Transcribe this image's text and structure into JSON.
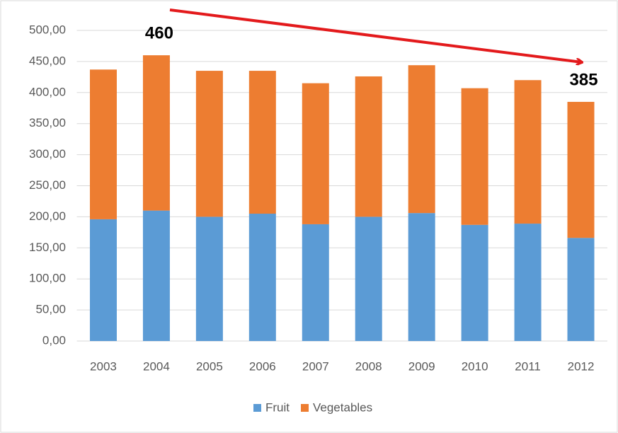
{
  "chart_data": {
    "type": "stacked_bar",
    "categories": [
      "2003",
      "2004",
      "2005",
      "2006",
      "2007",
      "2008",
      "2009",
      "2010",
      "2011",
      "2012"
    ],
    "series": [
      {
        "name": "Fruit",
        "color": "#5b9bd5",
        "values": [
          196,
          210,
          200,
          205,
          188,
          200,
          206,
          187,
          189,
          166
        ]
      },
      {
        "name": "Vegetables",
        "color": "#ed7d31",
        "values": [
          241,
          250,
          235,
          230,
          227,
          226,
          238,
          220,
          231,
          219
        ]
      }
    ],
    "ylim": [
      0,
      500
    ],
    "yticks": [
      {
        "value": 0,
        "label": "0,00"
      },
      {
        "value": 50,
        "label": "50,00"
      },
      {
        "value": 100,
        "label": "100,00"
      },
      {
        "value": 150,
        "label": "150,00"
      },
      {
        "value": 200,
        "label": "200,00"
      },
      {
        "value": 250,
        "label": "250,00"
      },
      {
        "value": 300,
        "label": "300,00"
      },
      {
        "value": 350,
        "label": "350,00"
      },
      {
        "value": 400,
        "label": "400,00"
      },
      {
        "value": 450,
        "label": "450,00"
      },
      {
        "value": 500,
        "label": "500,00"
      }
    ],
    "grid": true,
    "legend": "bottom",
    "annotations": [
      {
        "text": "460",
        "category": "2004"
      },
      {
        "text": "385",
        "category": "2012"
      }
    ]
  }
}
